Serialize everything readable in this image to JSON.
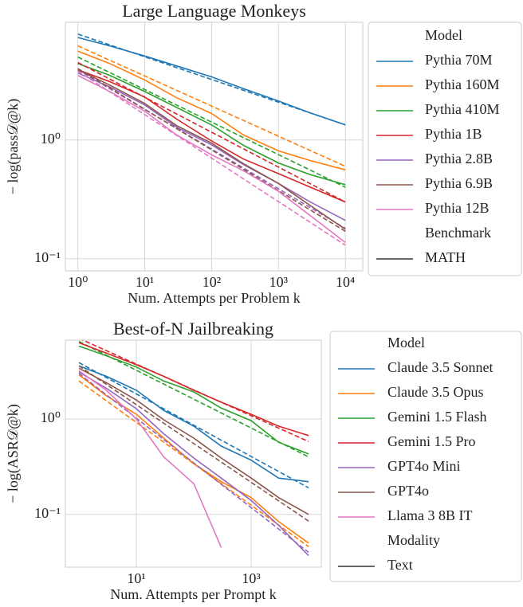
{
  "chart_data": [
    {
      "type": "line",
      "title": "Large Language Monkeys",
      "xlabel": "Num. Attempts per Problem k",
      "ylabel": "− log(pass𝒟@k)",
      "log_x": true,
      "log_y": true,
      "grid": true,
      "x": [
        1,
        3,
        10,
        30,
        100,
        300,
        1000,
        3000,
        10000
      ],
      "fit_x": [
        1,
        10000
      ],
      "xlim": [
        0.65,
        18200
      ],
      "ylim": [
        0.079,
        9.8
      ],
      "xticks": [
        {
          "value": 1,
          "label": "10⁰"
        },
        {
          "value": 10,
          "label": "10¹"
        },
        {
          "value": 100,
          "label": "10²"
        },
        {
          "value": 1000,
          "label": "10³"
        },
        {
          "value": 10000,
          "label": "10⁴"
        }
      ],
      "yticks": [
        {
          "value": 0.1,
          "label": "10⁻¹"
        },
        {
          "value": 1,
          "label": "10⁰"
        }
      ],
      "legend_title": "Model",
      "style_title": "Benchmark",
      "style_entry": "MATH",
      "style_color": "#333333",
      "series": [
        {
          "name": "Pythia 70M",
          "color": "#1f77b4",
          "values": [
            7.3,
            6.2,
            5.1,
            4.2,
            3.4,
            2.7,
            2.13,
            1.69,
            1.34
          ],
          "fit_values": [
            7.8,
            1.34
          ]
        },
        {
          "name": "Pythia 160M",
          "color": "#ff7f0e",
          "values": [
            5.6,
            4.4,
            3.2,
            2.27,
            1.67,
            1.1,
            0.81,
            0.67,
            0.56
          ],
          "fit_values": [
            6.2,
            0.6
          ]
        },
        {
          "name": "Pythia 410M",
          "color": "#2ca02c",
          "values": [
            4.4,
            3.5,
            2.56,
            1.88,
            1.34,
            0.9,
            0.64,
            0.51,
            0.42
          ],
          "fit_values": [
            5.0,
            0.4
          ]
        },
        {
          "name": "Pythia 1B",
          "color": "#d62728",
          "values": [
            3.9,
            3.1,
            2.3,
            1.5,
            0.98,
            0.69,
            0.52,
            0.4,
            0.3
          ],
          "fit_values": [
            4.5,
            0.3
          ]
        },
        {
          "name": "Pythia 2.8B",
          "color": "#9467bd",
          "values": [
            3.66,
            2.8,
            1.97,
            1.28,
            0.91,
            0.62,
            0.43,
            0.3,
            0.21
          ],
          "fit_values": [
            3.9,
            0.18
          ]
        },
        {
          "name": "Pythia 6.9B",
          "color": "#8c564b",
          "values": [
            3.9,
            2.9,
            2.03,
            1.32,
            0.94,
            0.63,
            0.43,
            0.28,
            0.177
          ],
          "fit_values": [
            4.0,
            0.17
          ]
        },
        {
          "name": "Pythia 12B",
          "color": "#e377c2",
          "values": [
            3.5,
            2.56,
            1.75,
            1.1,
            0.75,
            0.55,
            0.37,
            0.23,
            0.137
          ],
          "fit_values": [
            3.8,
            0.13
          ]
        }
      ]
    },
    {
      "type": "line",
      "title": "Best-of-N Jailbreaking",
      "xlabel": "Num. Attempts per Prompt k",
      "ylabel": "− log(ASR𝒟@k)",
      "log_x": true,
      "log_y": true,
      "grid": true,
      "x": [
        1,
        3,
        10,
        30,
        100,
        300,
        1000,
        3000,
        10000
      ],
      "fit_x": [
        1,
        10000
      ],
      "xlim": [
        0.58,
        16600
      ],
      "ylim": [
        0.028,
        6.7
      ],
      "xticks": [
        {
          "value": 10,
          "label": "10¹"
        },
        {
          "value": 1000,
          "label": "10³"
        }
      ],
      "yticks": [
        {
          "value": 0.1,
          "label": "10⁻¹"
        },
        {
          "value": 1,
          "label": "10⁰"
        }
      ],
      "legend_title": "Model",
      "style_title": "Modality",
      "style_entry": "Text",
      "style_color": "#333333",
      "series": [
        {
          "name": "Claude 3.5 Sonnet",
          "color": "#1f77b4",
          "values": [
            3.6,
            2.8,
            2.0,
            1.23,
            0.84,
            0.52,
            0.37,
            0.24,
            0.22
          ],
          "fit_values": [
            3.9,
            0.19
          ]
        },
        {
          "name": "Claude 3.5 Opus",
          "color": "#ff7f0e",
          "values": [
            2.9,
            1.75,
            1.12,
            0.63,
            0.34,
            0.22,
            0.15,
            0.084,
            0.05
          ],
          "fit_values": [
            2.5,
            0.046
          ]
        },
        {
          "name": "Gemini 1.5 Flash",
          "color": "#2ca02c",
          "values": [
            5.8,
            4.6,
            3.5,
            2.5,
            1.92,
            1.3,
            0.96,
            0.57,
            0.43
          ],
          "fit_values": [
            6.5,
            0.4
          ]
        },
        {
          "name": "Gemini 1.5 Pro",
          "color": "#d62728",
          "values": [
            6.3,
            4.9,
            3.7,
            2.8,
            2.0,
            1.5,
            1.12,
            0.84,
            0.67
          ],
          "fit_values": [
            7.0,
            0.58
          ]
        },
        {
          "name": "GPT4o Mini",
          "color": "#9467bd",
          "values": [
            3.1,
            2.1,
            1.28,
            0.7,
            0.39,
            0.24,
            0.14,
            0.077,
            0.037
          ],
          "fit_values": [
            3.0,
            0.04
          ]
        },
        {
          "name": "GPT4o",
          "color": "#8c564b",
          "values": [
            3.4,
            2.4,
            1.58,
            0.98,
            0.63,
            0.39,
            0.24,
            0.15,
            0.1
          ],
          "fit_values": [
            3.6,
            0.085
          ]
        },
        {
          "name": "Llama 3 8B IT",
          "color": "#e377c2",
          "values": [
            3.2,
            2.0,
            1.0,
            0.4,
            0.21,
            0.045,
            null,
            null,
            null
          ]
        }
      ]
    }
  ]
}
